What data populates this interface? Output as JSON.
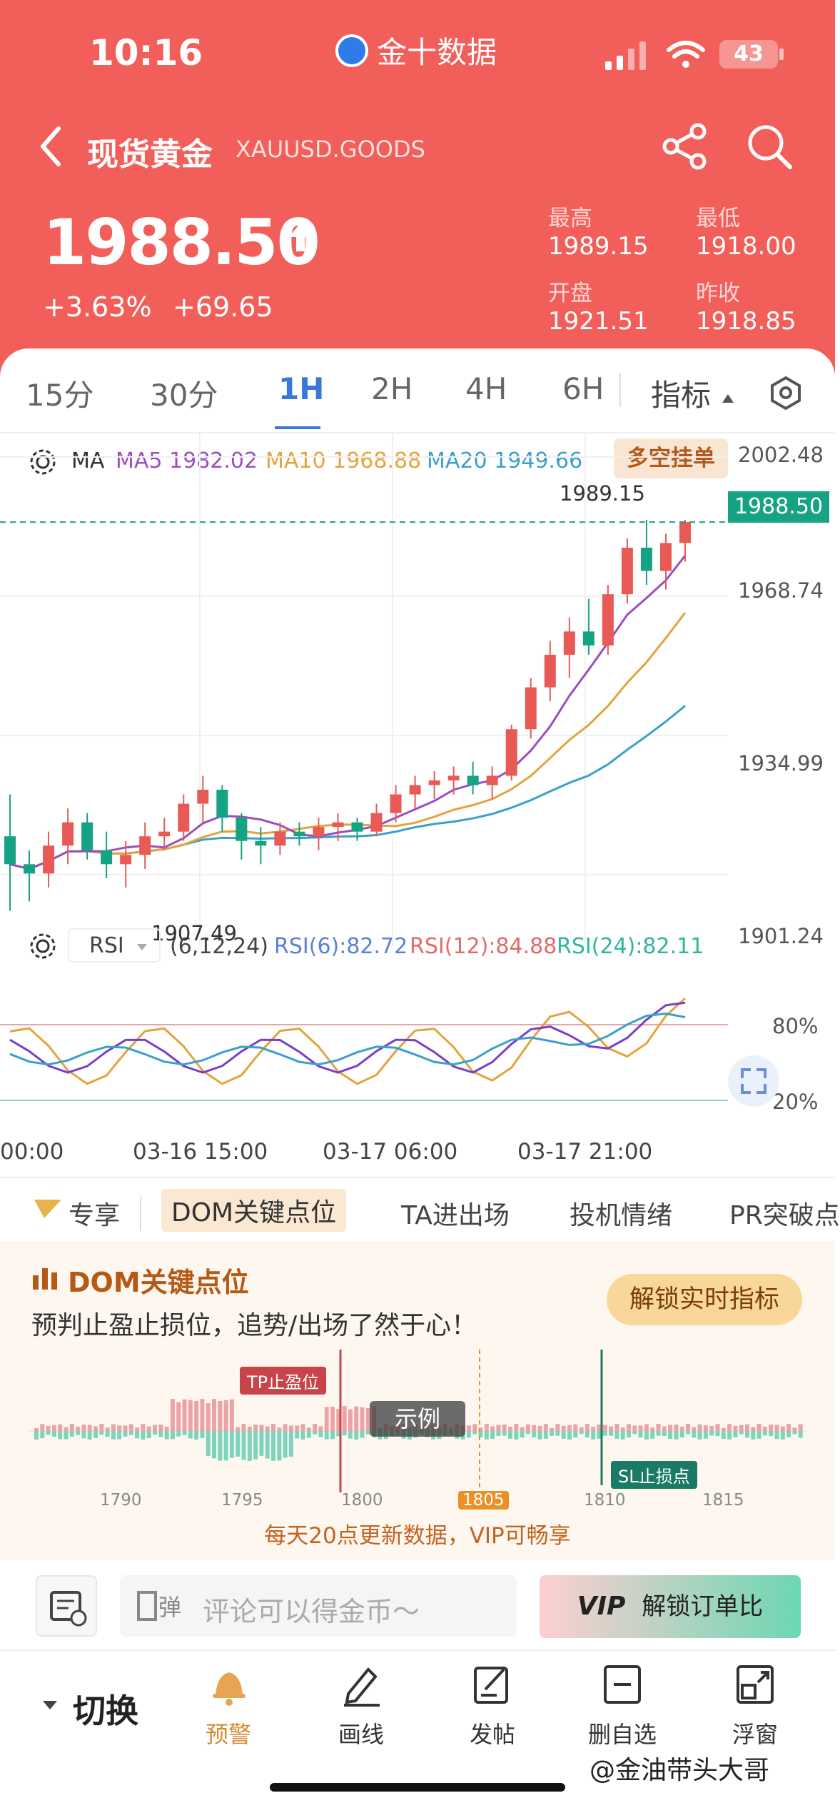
{
  "status": {
    "time": "10:16",
    "app": "金十数据",
    "battery": "43"
  },
  "header": {
    "title": "现货黄金",
    "symbol": "XAUUSD.GOODS",
    "price": "1988.50",
    "change_pct": "+3.63%",
    "change_abs": "+69.65",
    "stats": [
      {
        "label": "最高",
        "value": "1989.15"
      },
      {
        "label": "最低",
        "value": "1918.00"
      },
      {
        "label": "开盘",
        "value": "1921.51"
      },
      {
        "label": "昨收",
        "value": "1918.85"
      }
    ],
    "colors": {
      "bg": "#f25f5a",
      "up": "#e85a55",
      "down": "#16a383"
    }
  },
  "timeframes": [
    "15分",
    "30分",
    "1H",
    "2H",
    "4H",
    "6H"
  ],
  "timeframe_active": "1H",
  "indicator_label": "指标",
  "ma": {
    "label": "MA",
    "ma5": "MA5 1982.02",
    "ma10": "MA10 1968.88",
    "ma20": "MA20 1949.66",
    "pill": "多空挂单"
  },
  "price_axis": [
    "2002.48",
    "1968.74",
    "1934.99",
    "1901.24"
  ],
  "current_price_tag": "1988.50",
  "high_marker": "1989.15",
  "low_marker": "1907.49",
  "rsi": {
    "select": "RSI",
    "params": "(6,12,24)",
    "rsi6": "RSI(6):82.72",
    "rsi12": "RSI(12):84.88",
    "rsi24": "RSI(24):82.11",
    "levels": [
      "80%",
      "20%"
    ]
  },
  "time_axis": [
    "00:00",
    "03-16 15:00",
    "03-17 06:00",
    "03-17 21:00"
  ],
  "feature_tabs": [
    "专享",
    "DOM关键点位",
    "TA进出场",
    "投机情绪",
    "PR突破点"
  ],
  "dom": {
    "title": "DOM关键点位",
    "subtitle": "预判止盈止损位，追势/出场了然于心！",
    "unlock": "解锁实时指标",
    "tp_label": "TP止盈位",
    "sl_label": "SL止损点",
    "example": "示例",
    "ticks": [
      "1790",
      "1795",
      "1800",
      "1805",
      "1810",
      "1815"
    ],
    "footer": "每天20点更新数据，VIP可畅享"
  },
  "comment": {
    "placeholder": "评论可以得金币～",
    "vip_button": "解锁订单比",
    "vip_tag": "VIP"
  },
  "bottom_nav": {
    "switch": "切换",
    "items": [
      "预警",
      "画线",
      "发帖",
      "删自选",
      "浮窗"
    ]
  },
  "watermark": "@金油带头大哥",
  "chart_data": {
    "type": "candlestick",
    "ylim": [
      1901.24,
      2002.48
    ],
    "candles_approx": [
      [
        1921,
        1930,
        1905,
        1915
      ],
      [
        1915,
        1918,
        1907,
        1913
      ],
      [
        1913,
        1922,
        1910,
        1919
      ],
      [
        1919,
        1927,
        1915,
        1924
      ],
      [
        1924,
        1926,
        1916,
        1918
      ],
      [
        1918,
        1922,
        1912,
        1915
      ],
      [
        1915,
        1920,
        1910,
        1917
      ],
      [
        1917,
        1924,
        1914,
        1921
      ],
      [
        1921,
        1925,
        1918,
        1922
      ],
      [
        1922,
        1930,
        1920,
        1928
      ],
      [
        1928,
        1934,
        1924,
        1931
      ],
      [
        1931,
        1932,
        1922,
        1925
      ],
      [
        1925,
        1926,
        1916,
        1920
      ],
      [
        1920,
        1923,
        1915,
        1919
      ],
      [
        1919,
        1924,
        1917,
        1922
      ],
      [
        1922,
        1924,
        1919,
        1921
      ],
      [
        1921,
        1925,
        1918,
        1923
      ],
      [
        1923,
        1926,
        1920,
        1924
      ],
      [
        1924,
        1925,
        1920,
        1922
      ],
      [
        1922,
        1928,
        1921,
        1926
      ],
      [
        1926,
        1932,
        1924,
        1930
      ],
      [
        1930,
        1934,
        1927,
        1932
      ],
      [
        1932,
        1935,
        1929,
        1933
      ],
      [
        1933,
        1936,
        1930,
        1934
      ],
      [
        1934,
        1937,
        1930,
        1932
      ],
      [
        1932,
        1936,
        1929,
        1934
      ],
      [
        1934,
        1945,
        1933,
        1944
      ],
      [
        1944,
        1955,
        1942,
        1953
      ],
      [
        1953,
        1963,
        1950,
        1960
      ],
      [
        1960,
        1968,
        1955,
        1965
      ],
      [
        1965,
        1972,
        1960,
        1962
      ],
      [
        1962,
        1975,
        1960,
        1973
      ],
      [
        1973,
        1985,
        1971,
        1983
      ],
      [
        1983,
        1989,
        1975,
        1978
      ],
      [
        1978,
        1986,
        1974,
        1984
      ],
      [
        1984,
        1989,
        1980,
        1988.5
      ]
    ]
  }
}
